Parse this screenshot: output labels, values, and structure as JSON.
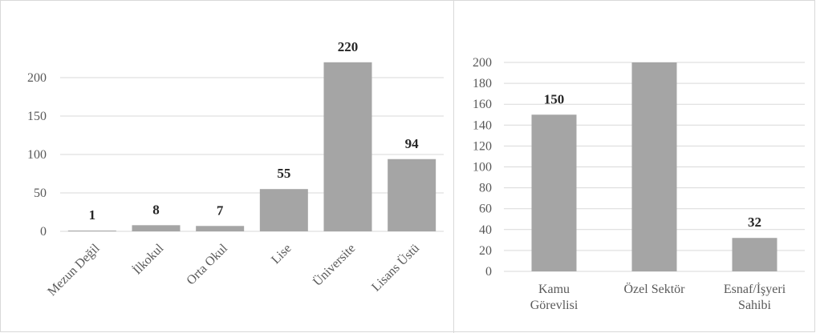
{
  "colors": {
    "bar": "#a5a5a5",
    "grid": "#d9d9d9",
    "axis_text": "#595959",
    "data_label": "#262626",
    "background": "#ffffff"
  },
  "chart_data": [
    {
      "type": "bar",
      "title": "",
      "xlabel": "",
      "ylabel": "",
      "categories": [
        "Mezun Değil",
        "İlkokul",
        "Orta Okul",
        "Lise",
        "Üniversite",
        "Lisans Üstü"
      ],
      "values": [
        1,
        8,
        7,
        55,
        220,
        94
      ],
      "data_labels": [
        "1",
        "8",
        "7",
        "55",
        "220",
        "94"
      ],
      "ylim": [
        0,
        250
      ],
      "yticks": [
        0,
        50,
        100,
        150,
        200
      ],
      "grid": true,
      "legend": "none",
      "category_label_rotation": "rotated 45 degrees"
    },
    {
      "type": "bar",
      "title": "",
      "xlabel": "",
      "ylabel": "",
      "categories": [
        "Kamu Görevlisi",
        "Özel Sektör",
        "Esnaf/İşyeri Sahibi"
      ],
      "category_lines": [
        [
          "Kamu",
          "Görevlisi"
        ],
        [
          "Özel Sektör"
        ],
        [
          "Esnaf/İşyeri",
          "Sahibi"
        ]
      ],
      "values": [
        150,
        200,
        32
      ],
      "data_labels": [
        "150",
        "",
        "32"
      ],
      "ylim": [
        0,
        200
      ],
      "yticks": [
        0,
        20,
        40,
        60,
        80,
        100,
        120,
        140,
        160,
        180,
        200
      ],
      "grid": true,
      "legend": "none"
    }
  ]
}
